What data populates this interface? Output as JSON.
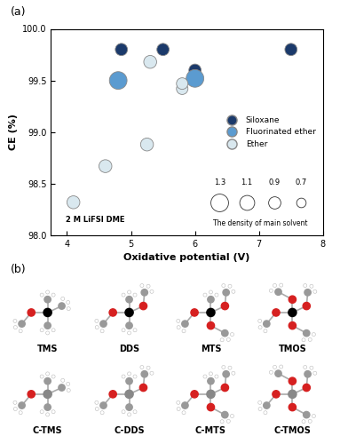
{
  "chart_data": {
    "type": "scatter",
    "panel_label": "(a)",
    "xlabel": "Oxidative potential (V)",
    "ylabel": "CE (%)",
    "xlim": [
      3.75,
      8
    ],
    "ylim": [
      98.0,
      100.0
    ],
    "xticks": [
      4,
      5,
      6,
      7,
      8
    ],
    "yticks": [
      98.0,
      98.5,
      99.0,
      99.5,
      100.0
    ],
    "legend": "center right",
    "series": [
      {
        "name": "Siloxane",
        "color": "#1b3a6b",
        "marker": "circle",
        "x": [
          4.85,
          5.5,
          6.0,
          7.5
        ],
        "values": [
          99.8,
          99.8,
          99.6,
          99.8
        ],
        "density": [
          0.9,
          0.9,
          0.9,
          0.9
        ]
      },
      {
        "name": "Fluorinated ether",
        "color": "#5b9bd0",
        "marker": "circle",
        "x": [
          4.8,
          6.0
        ],
        "values": [
          99.5,
          99.52
        ],
        "density": [
          1.3,
          1.3
        ]
      },
      {
        "name": "Ether",
        "color": "#d9e8ef",
        "marker": "circle",
        "x": [
          4.1,
          4.6,
          5.25,
          5.3,
          5.8,
          5.8
        ],
        "values": [
          98.32,
          98.67,
          98.88,
          99.68,
          99.42,
          99.47
        ],
        "density": [
          0.95,
          0.95,
          0.95,
          0.95,
          0.85,
          0.85
        ]
      }
    ],
    "annotations": [
      {
        "text": "2 M LiFSI DME",
        "x": 4.1,
        "y": 98.32
      }
    ],
    "size_legend": {
      "title": "The density of main solvent",
      "values": [
        1.3,
        1.1,
        0.9,
        0.7
      ]
    }
  },
  "diagram": {
    "panel_label": "(b)",
    "molecules": [
      "TMS",
      "DDS",
      "MTS",
      "TMOS",
      "C-TMS",
      "C-DDS",
      "C-MTS",
      "C-TMOS"
    ]
  }
}
